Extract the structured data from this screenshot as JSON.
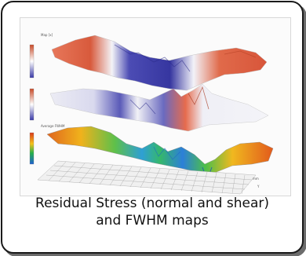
{
  "figure": {
    "maps": [
      {
        "label": "Map [x]",
        "colormap": [
          "#c84a28",
          "#ffffff",
          "#3a3aa8"
        ]
      },
      {
        "label": "",
        "colormap": [
          "#c84a28",
          "#ffffff",
          "#3a3aa8"
        ]
      },
      {
        "label": "Average FWHM",
        "colormap": [
          "#d93a1a",
          "#f5c21a",
          "#25b04a",
          "#1e5fd0"
        ]
      }
    ]
  },
  "caption": {
    "line1": "Residual Stress (normal and shear)",
    "line2": "and FWHM maps"
  }
}
